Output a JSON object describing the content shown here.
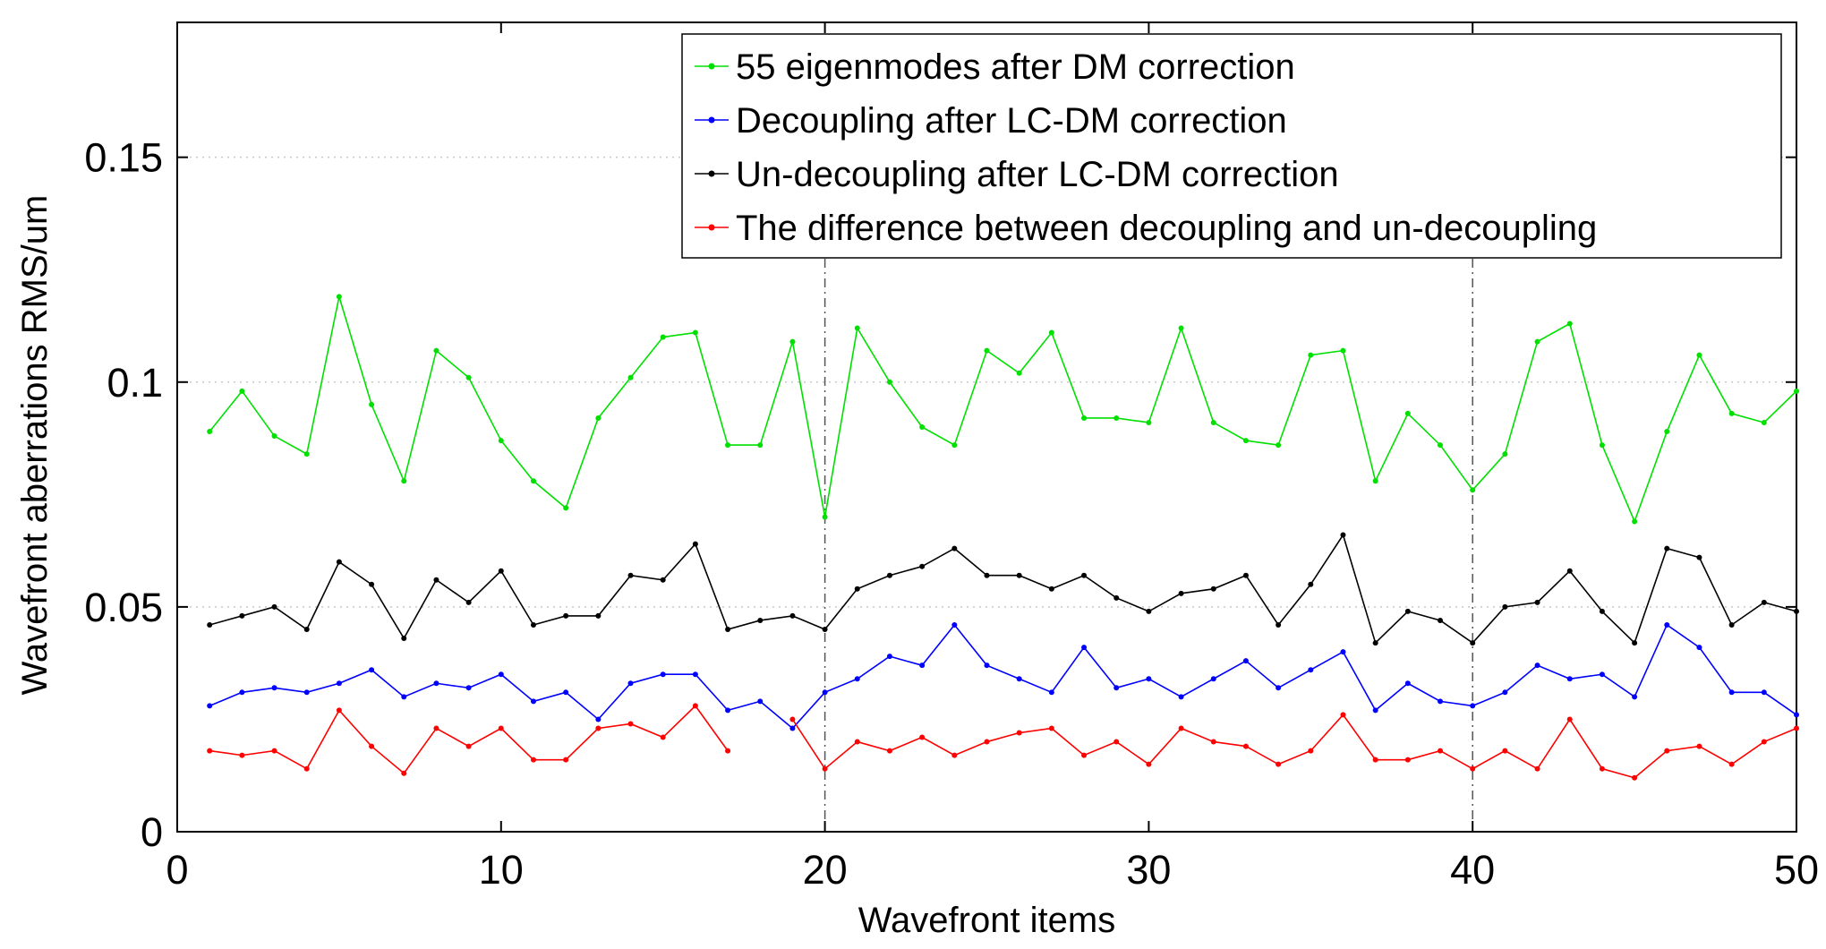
{
  "chart_data": {
    "type": "line",
    "title": "",
    "xlabel": "Wavefront items",
    "ylabel": "Wavefront aberrations RMS/um",
    "xlim": [
      0,
      50
    ],
    "ylim": [
      0,
      0.18
    ],
    "xticks": [
      0,
      10,
      20,
      30,
      40,
      50
    ],
    "xtick_labels": [
      "0",
      "10",
      "20",
      "30",
      "40",
      "50"
    ],
    "yticks": [
      0,
      0.05,
      0.1,
      0.15
    ],
    "ytick_labels": [
      "0",
      "0.05",
      "0.1",
      "0.15"
    ],
    "grid": "dotted horizontal gridlines",
    "vertical_reference_lines": [
      20,
      40
    ],
    "legend_position": "top-right",
    "x": [
      1,
      2,
      3,
      4,
      5,
      6,
      7,
      8,
      9,
      10,
      11,
      12,
      13,
      14,
      15,
      16,
      17,
      18,
      19,
      20,
      21,
      22,
      23,
      24,
      25,
      26,
      27,
      28,
      29,
      30,
      31,
      32,
      33,
      34,
      35,
      36,
      37,
      38,
      39,
      40,
      41,
      42,
      43,
      44,
      45,
      46,
      47,
      48,
      49,
      50
    ],
    "series": [
      {
        "name": "55 eigenmodes after DM correction",
        "color": "#00e000",
        "values": [
          0.089,
          0.098,
          0.088,
          0.084,
          0.119,
          0.095,
          0.078,
          0.107,
          0.101,
          0.087,
          0.078,
          0.072,
          0.092,
          0.101,
          0.11,
          0.111,
          0.086,
          0.086,
          0.109,
          0.07,
          0.112,
          0.1,
          0.09,
          0.086,
          0.107,
          0.102,
          0.111,
          0.092,
          0.092,
          0.091,
          0.112,
          0.091,
          0.087,
          0.086,
          0.106,
          0.107,
          0.078,
          0.093,
          0.086,
          0.076,
          0.084,
          0.109,
          0.113,
          0.086,
          0.069,
          0.089,
          0.106,
          0.093,
          0.091,
          0.098
        ]
      },
      {
        "name": "Decoupling after LC-DM correction",
        "color": "#0000ff",
        "values": [
          0.028,
          0.031,
          0.032,
          0.031,
          0.033,
          0.036,
          0.03,
          0.033,
          0.032,
          0.035,
          0.029,
          0.031,
          0.025,
          0.033,
          0.035,
          0.035,
          0.027,
          0.029,
          0.023,
          0.031,
          0.034,
          0.039,
          0.037,
          0.046,
          0.037,
          0.034,
          0.031,
          0.041,
          0.032,
          0.034,
          0.03,
          0.034,
          0.038,
          0.032,
          0.036,
          0.04,
          0.027,
          0.033,
          0.029,
          0.028,
          0.031,
          0.037,
          0.034,
          0.035,
          0.03,
          0.046,
          0.041,
          0.031,
          0.031,
          0.026
        ]
      },
      {
        "name": "Un-decoupling after LC-DM correction",
        "color": "#000000",
        "values": [
          0.046,
          0.048,
          0.05,
          0.045,
          0.06,
          0.055,
          0.043,
          0.056,
          0.051,
          0.058,
          0.046,
          0.048,
          0.048,
          0.057,
          0.056,
          0.064,
          0.045,
          0.047,
          0.048,
          0.045,
          0.054,
          0.057,
          0.059,
          0.063,
          0.057,
          0.057,
          0.054,
          0.057,
          0.052,
          0.049,
          0.053,
          0.054,
          0.057,
          0.046,
          0.055,
          0.066,
          0.042,
          0.049,
          0.047,
          0.042,
          0.05,
          0.051,
          0.058,
          0.049,
          0.042,
          0.063,
          0.061,
          0.046,
          0.051,
          0.049
        ]
      },
      {
        "name": "The difference between decoupling and un-decoupling",
        "color": "#ff0000",
        "values": [
          0.018,
          0.017,
          0.018,
          0.014,
          0.027,
          0.019,
          0.013,
          0.023,
          0.019,
          0.023,
          0.016,
          0.016,
          0.023,
          0.024,
          0.021,
          0.028,
          0.018,
          null,
          0.025,
          0.014,
          0.02,
          0.018,
          0.021,
          0.017,
          0.02,
          0.022,
          0.023,
          0.017,
          0.02,
          0.015,
          0.023,
          0.02,
          0.019,
          0.015,
          0.018,
          0.026,
          0.016,
          0.016,
          0.018,
          0.014,
          0.018,
          0.014,
          0.025,
          0.014,
          0.012,
          0.018,
          0.019,
          0.015,
          0.02,
          0.023
        ]
      }
    ]
  }
}
